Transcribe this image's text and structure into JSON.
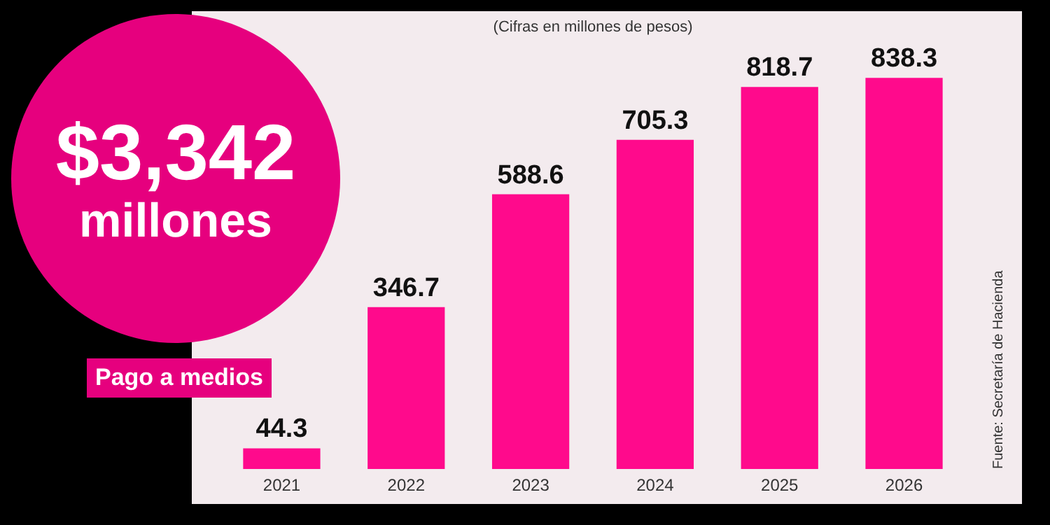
{
  "chart_data": {
    "type": "bar",
    "title": "$3,342 millones",
    "subtitle": "(Cifras en millones de pesos)",
    "categories": [
      "2021",
      "2022",
      "2023",
      "2024",
      "2025",
      "2026"
    ],
    "values": [
      44.3,
      346.7,
      588.6,
      705.3,
      818.7,
      838.3
    ],
    "color": "#ff0a8c",
    "data_labels": true,
    "tick_labels": "x",
    "grid": false,
    "annotations": [
      "Pago a medios",
      "Fuente: Secretaría de Hacienda"
    ]
  }
}
